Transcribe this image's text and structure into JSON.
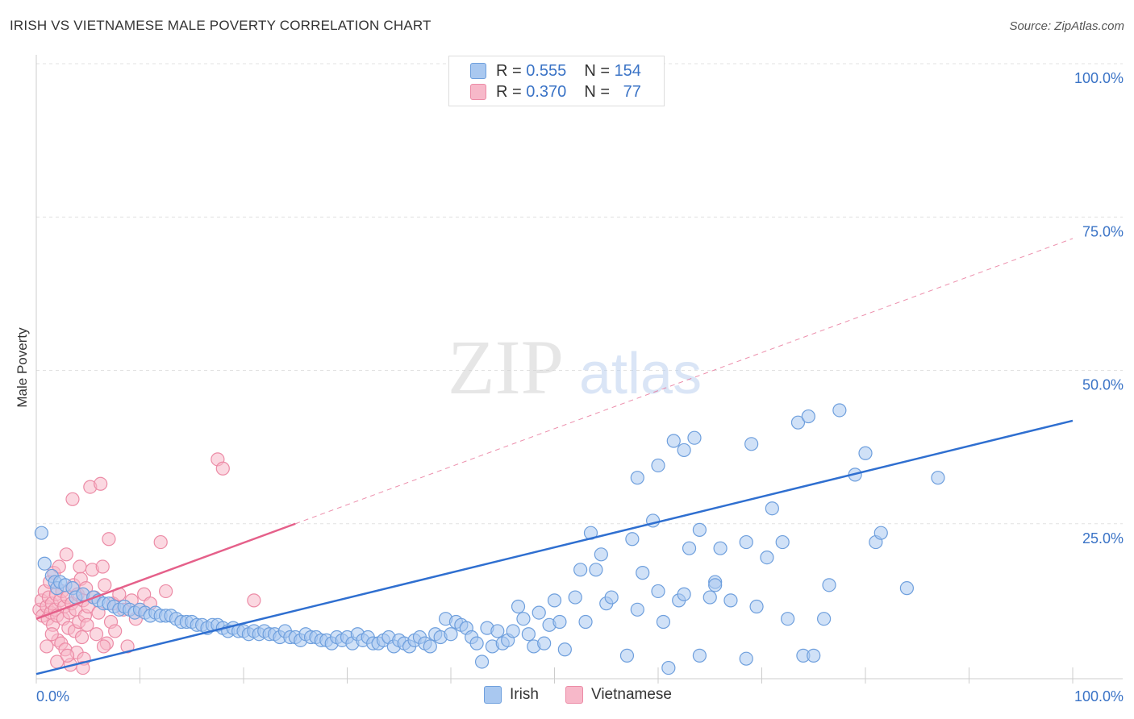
{
  "header": {
    "title": "IRISH VS VIETNAMESE MALE POVERTY CORRELATION CHART",
    "source": "Source: ZipAtlas.com"
  },
  "watermark": {
    "zip": "ZIP",
    "atlas": "atlas"
  },
  "legend": {
    "irish": {
      "r_label": "R =",
      "r_value": "0.555",
      "n_label": "N =",
      "n_value": "154"
    },
    "vietnamese": {
      "r_label": "R =",
      "r_value": "0.370",
      "n_label": "N =",
      "n_value": "77"
    }
  },
  "bottom_legend": {
    "irish": "Irish",
    "vietnamese": "Vietnamese"
  },
  "colors": {
    "irish_fill": "#a9c8f0",
    "irish_stroke": "#6e9fdd",
    "irish_line": "#2f6fd0",
    "viet_fill": "#f7b8c9",
    "viet_stroke": "#ec8ba6",
    "viet_line": "#e5608a",
    "grid": "#e2e2e2",
    "tick_text": "#3a73c6"
  },
  "chart_data": {
    "type": "scatter",
    "title": "IRISH VS VIETNAMESE MALE POVERTY CORRELATION CHART",
    "xlabel": "",
    "ylabel": "Male Poverty",
    "xlim": [
      0,
      100
    ],
    "ylim": [
      0,
      100
    ],
    "x_tick_labels": [
      "0.0%",
      "100.0%"
    ],
    "y_tick_labels": [
      "25.0%",
      "50.0%",
      "75.0%",
      "100.0%"
    ],
    "y_ticks": [
      25,
      50,
      75,
      100
    ],
    "grid": true,
    "legend_position": "top-center",
    "series": [
      {
        "name": "Irish",
        "r": 0.555,
        "n": 154,
        "trend": {
          "x": [
            0,
            100
          ],
          "y": [
            0.5,
            41.8
          ]
        },
        "points": [
          [
            0.5,
            23.5
          ],
          [
            0.8,
            18.5
          ],
          [
            1.5,
            16.5
          ],
          [
            1.8,
            15.5
          ],
          [
            2.0,
            14.5
          ],
          [
            2.3,
            15.5
          ],
          [
            2.8,
            15.0
          ],
          [
            3.5,
            14.5
          ],
          [
            3.8,
            13.0
          ],
          [
            4.5,
            13.5
          ],
          [
            5.5,
            13.0
          ],
          [
            6.0,
            12.5
          ],
          [
            6.5,
            12.0
          ],
          [
            7.0,
            12.0
          ],
          [
            7.5,
            11.5
          ],
          [
            8.0,
            11.0
          ],
          [
            8.5,
            11.5
          ],
          [
            9.0,
            11.0
          ],
          [
            9.5,
            10.5
          ],
          [
            10.0,
            11.0
          ],
          [
            10.5,
            10.5
          ],
          [
            11.0,
            10.0
          ],
          [
            11.5,
            10.5
          ],
          [
            12.0,
            10.0
          ],
          [
            12.5,
            10.0
          ],
          [
            13.0,
            10.0
          ],
          [
            13.5,
            9.5
          ],
          [
            14.0,
            9.0
          ],
          [
            14.5,
            9.0
          ],
          [
            15.0,
            9.0
          ],
          [
            15.5,
            8.5
          ],
          [
            16.0,
            8.5
          ],
          [
            16.5,
            8.0
          ],
          [
            17.0,
            8.5
          ],
          [
            17.5,
            8.5
          ],
          [
            18.0,
            8.0
          ],
          [
            18.5,
            7.5
          ],
          [
            19.0,
            8.0
          ],
          [
            19.5,
            7.5
          ],
          [
            20.0,
            7.5
          ],
          [
            20.5,
            7.0
          ],
          [
            21.0,
            7.5
          ],
          [
            21.5,
            7.0
          ],
          [
            22.0,
            7.5
          ],
          [
            22.5,
            7.0
          ],
          [
            23.0,
            7.0
          ],
          [
            23.5,
            6.5
          ],
          [
            24.0,
            7.5
          ],
          [
            24.5,
            6.5
          ],
          [
            25.0,
            6.5
          ],
          [
            25.5,
            6.0
          ],
          [
            26.0,
            7.0
          ],
          [
            26.5,
            6.5
          ],
          [
            27.0,
            6.5
          ],
          [
            27.5,
            6.0
          ],
          [
            28.0,
            6.0
          ],
          [
            28.5,
            5.5
          ],
          [
            29.0,
            6.5
          ],
          [
            29.5,
            6.0
          ],
          [
            30.0,
            6.5
          ],
          [
            30.5,
            5.5
          ],
          [
            31.0,
            7.0
          ],
          [
            31.5,
            6.0
          ],
          [
            32.0,
            6.5
          ],
          [
            32.5,
            5.5
          ],
          [
            33.0,
            5.5
          ],
          [
            33.5,
            6.0
          ],
          [
            34.0,
            6.5
          ],
          [
            34.5,
            5.0
          ],
          [
            35.0,
            6.0
          ],
          [
            35.5,
            5.5
          ],
          [
            36.0,
            5.0
          ],
          [
            36.5,
            6.0
          ],
          [
            37.0,
            6.5
          ],
          [
            37.5,
            5.5
          ],
          [
            38.0,
            5.0
          ],
          [
            38.5,
            7.0
          ],
          [
            39.0,
            6.5
          ],
          [
            39.5,
            9.5
          ],
          [
            40.0,
            7.0
          ],
          [
            40.5,
            9.0
          ],
          [
            41.0,
            8.5
          ],
          [
            41.5,
            8.0
          ],
          [
            42.0,
            6.5
          ],
          [
            42.5,
            5.5
          ],
          [
            43.0,
            2.5
          ],
          [
            43.5,
            8.0
          ],
          [
            44.0,
            5.0
          ],
          [
            44.5,
            7.5
          ],
          [
            45.0,
            5.5
          ],
          [
            45.5,
            6.0
          ],
          [
            46.0,
            7.5
          ],
          [
            46.5,
            11.5
          ],
          [
            47.0,
            9.5
          ],
          [
            47.5,
            7.0
          ],
          [
            48.0,
            5.0
          ],
          [
            48.5,
            10.5
          ],
          [
            49.0,
            5.5
          ],
          [
            49.5,
            8.5
          ],
          [
            50.0,
            12.5
          ],
          [
            50.5,
            9.0
          ],
          [
            51.0,
            4.5
          ],
          [
            52.0,
            13.0
          ],
          [
            52.5,
            17.5
          ],
          [
            53.0,
            9.0
          ],
          [
            53.5,
            23.5
          ],
          [
            54.0,
            17.5
          ],
          [
            54.5,
            20.0
          ],
          [
            55.0,
            12.0
          ],
          [
            55.5,
            13.0
          ],
          [
            57.0,
            3.5
          ],
          [
            57.5,
            22.5
          ],
          [
            58.0,
            11.0
          ],
          [
            58.5,
            17.0
          ],
          [
            60.0,
            14.0
          ],
          [
            60.5,
            9.0
          ],
          [
            61.0,
            1.5
          ],
          [
            62.0,
            12.5
          ],
          [
            62.5,
            13.5
          ],
          [
            63.0,
            21.0
          ],
          [
            64.0,
            3.5
          ],
          [
            65.0,
            13.0
          ],
          [
            65.5,
            15.5
          ],
          [
            66.0,
            21.0
          ],
          [
            67.0,
            12.5
          ],
          [
            68.5,
            3.0
          ],
          [
            69.0,
            38.0
          ],
          [
            69.5,
            11.5
          ],
          [
            70.5,
            19.5
          ],
          [
            71.0,
            27.5
          ],
          [
            72.0,
            22.0
          ],
          [
            72.5,
            9.5
          ],
          [
            73.5,
            41.5
          ],
          [
            74.0,
            3.5
          ],
          [
            74.5,
            42.5
          ],
          [
            75.0,
            3.5
          ],
          [
            76.5,
            15.0
          ],
          [
            76.0,
            9.5
          ],
          [
            77.5,
            43.5
          ],
          [
            79.0,
            33.0
          ],
          [
            80.0,
            36.5
          ],
          [
            81.0,
            22.0
          ],
          [
            81.5,
            23.5
          ],
          [
            58.0,
            32.5
          ],
          [
            59.5,
            25.5
          ],
          [
            60.0,
            34.5
          ],
          [
            61.5,
            38.5
          ],
          [
            62.5,
            37.0
          ],
          [
            63.5,
            39.0
          ],
          [
            64.0,
            24.0
          ],
          [
            65.5,
            15.0
          ],
          [
            68.5,
            22.0
          ],
          [
            87.0,
            32.5
          ],
          [
            84.0,
            14.5
          ]
        ]
      },
      {
        "name": "Vietnamese",
        "r": 0.37,
        "n": 77,
        "trend": {
          "x": [
            0,
            25.0
          ],
          "y": [
            9.5,
            25.0
          ]
        },
        "points": [
          [
            0.3,
            11.0
          ],
          [
            0.5,
            12.5
          ],
          [
            0.6,
            10.0
          ],
          [
            0.8,
            14.0
          ],
          [
            1.0,
            11.5
          ],
          [
            1.1,
            9.5
          ],
          [
            1.2,
            13.0
          ],
          [
            1.3,
            15.5
          ],
          [
            1.4,
            10.5
          ],
          [
            1.5,
            12.0
          ],
          [
            1.6,
            8.5
          ],
          [
            1.7,
            17.0
          ],
          [
            1.8,
            11.0
          ],
          [
            1.9,
            13.5
          ],
          [
            2.0,
            10.0
          ],
          [
            2.1,
            6.0
          ],
          [
            2.2,
            18.0
          ],
          [
            2.3,
            12.5
          ],
          [
            2.4,
            5.5
          ],
          [
            2.5,
            14.0
          ],
          [
            2.6,
            9.5
          ],
          [
            2.7,
            11.5
          ],
          [
            2.8,
            4.5
          ],
          [
            2.9,
            20.0
          ],
          [
            3.0,
            13.0
          ],
          [
            3.1,
            8.0
          ],
          [
            3.2,
            10.5
          ],
          [
            3.3,
            2.0
          ],
          [
            3.4,
            12.0
          ],
          [
            3.5,
            29.0
          ],
          [
            3.6,
            15.0
          ],
          [
            3.7,
            7.5
          ],
          [
            3.8,
            11.0
          ],
          [
            3.9,
            4.0
          ],
          [
            4.0,
            13.5
          ],
          [
            4.1,
            9.0
          ],
          [
            4.2,
            18.0
          ],
          [
            4.3,
            16.0
          ],
          [
            4.4,
            6.5
          ],
          [
            4.5,
            12.5
          ],
          [
            4.6,
            3.0
          ],
          [
            4.7,
            10.0
          ],
          [
            4.8,
            14.5
          ],
          [
            4.9,
            8.5
          ],
          [
            5.0,
            11.5
          ],
          [
            5.2,
            31.0
          ],
          [
            5.4,
            17.5
          ],
          [
            5.6,
            13.0
          ],
          [
            5.8,
            7.0
          ],
          [
            6.0,
            10.5
          ],
          [
            6.2,
            31.5
          ],
          [
            6.4,
            18.0
          ],
          [
            6.6,
            15.0
          ],
          [
            6.8,
            5.5
          ],
          [
            7.0,
            22.5
          ],
          [
            7.2,
            9.0
          ],
          [
            7.4,
            12.0
          ],
          [
            7.6,
            7.5
          ],
          [
            8.0,
            13.5
          ],
          [
            8.4,
            11.0
          ],
          [
            8.8,
            5.0
          ],
          [
            9.2,
            12.5
          ],
          [
            9.6,
            9.5
          ],
          [
            10.0,
            11.0
          ],
          [
            10.4,
            13.5
          ],
          [
            11.0,
            12.0
          ],
          [
            12.0,
            22.0
          ],
          [
            12.5,
            14.0
          ],
          [
            17.5,
            35.5
          ],
          [
            18.0,
            34.0
          ],
          [
            21.0,
            12.5
          ],
          [
            1.0,
            5.0
          ],
          [
            2.0,
            2.5
          ],
          [
            4.5,
            1.5
          ],
          [
            6.5,
            5.0
          ],
          [
            3.0,
            3.5
          ],
          [
            1.5,
            7.0
          ]
        ]
      }
    ]
  }
}
